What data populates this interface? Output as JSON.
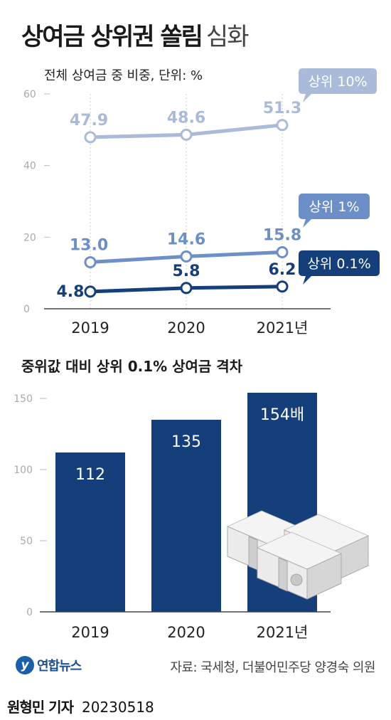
{
  "title": {
    "main": "상여금 상위권 쏠림",
    "light": "심화"
  },
  "chart_data": [
    {
      "type": "line",
      "subtitle": "전체 상여금 중 비중, 단위: %",
      "x": [
        "2019",
        "2020",
        "2021년"
      ],
      "ylim": [
        0,
        60
      ],
      "yticks": [
        0,
        20,
        40,
        60
      ],
      "grid": "vertical dotted",
      "series": [
        {
          "name": "상위 10%",
          "values": [
            47.9,
            48.6,
            51.3
          ],
          "labels": [
            "47.9",
            "48.6",
            "51.3"
          ],
          "color": "#a9bbd9"
        },
        {
          "name": "상위 1%",
          "values": [
            13.0,
            14.6,
            15.8
          ],
          "labels": [
            "13.0",
            "14.6",
            "15.8"
          ],
          "color": "#6d8fc7"
        },
        {
          "name": "상위 0.1%",
          "values": [
            4.8,
            5.8,
            6.2
          ],
          "labels": [
            "4.8",
            "5.8",
            "6.2"
          ],
          "color": "#143f7a"
        }
      ]
    },
    {
      "type": "bar",
      "subtitle": "중위값 대비 상위 0.1% 상여금 격차",
      "categories": [
        "2019",
        "2020",
        "2021년"
      ],
      "values": [
        112,
        135,
        154
      ],
      "labels": [
        "112",
        "135",
        "154배"
      ],
      "ylim": [
        0,
        150
      ],
      "yticks": [
        0,
        50,
        100,
        150
      ],
      "color": "#143f7a"
    }
  ],
  "footer": {
    "logo": "연합뉴스",
    "source": "자료: 국세청, 더불어민주당 양경숙 의원"
  },
  "byline": {
    "name": "원형민 기자",
    "date": "20230518"
  }
}
